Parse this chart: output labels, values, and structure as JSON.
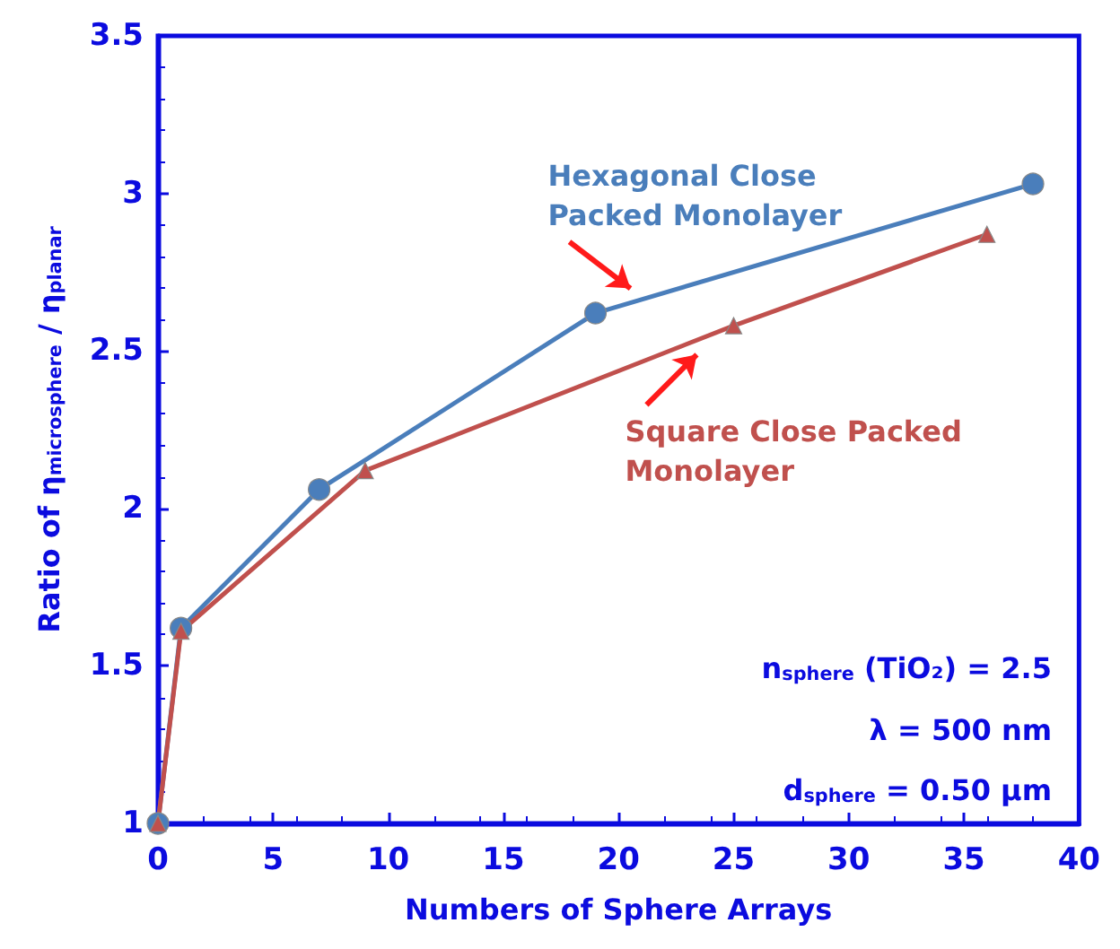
{
  "chart_data": {
    "type": "line",
    "xlabel": "Numbers of Sphere Arrays",
    "ylabel": "Ratio of η$_{microsphere}$ / η$_{planar}$",
    "series": [
      {
        "name": "Hexagonal Close\nPacked Monolayer",
        "color": "#4a7ebb",
        "marker": "circle",
        "x": [
          0,
          1,
          7,
          19,
          38
        ],
        "values": [
          1,
          1.62,
          2.06,
          2.62,
          3.03
        ]
      },
      {
        "name": "Square Close Packed\nMonolayer",
        "color": "#c0504d",
        "marker": "triangle",
        "x": [
          0,
          1,
          9,
          25,
          36
        ],
        "values": [
          1,
          1.61,
          2.12,
          2.58,
          2.87
        ]
      }
    ],
    "xlim": [
      0,
      40
    ],
    "xticks": [
      0,
      5,
      10,
      15,
      20,
      25,
      30,
      35,
      40
    ],
    "ylim": [
      1,
      3.5
    ],
    "yticks": [
      1,
      1.5,
      2,
      2.5,
      3,
      3.5
    ],
    "grid": false,
    "annotations": [
      "n$_{sphere}$ (TiO₂) = 2.5",
      "λ = 500 nm",
      "d$_{sphere}$ = 0.50 µm"
    ]
  }
}
